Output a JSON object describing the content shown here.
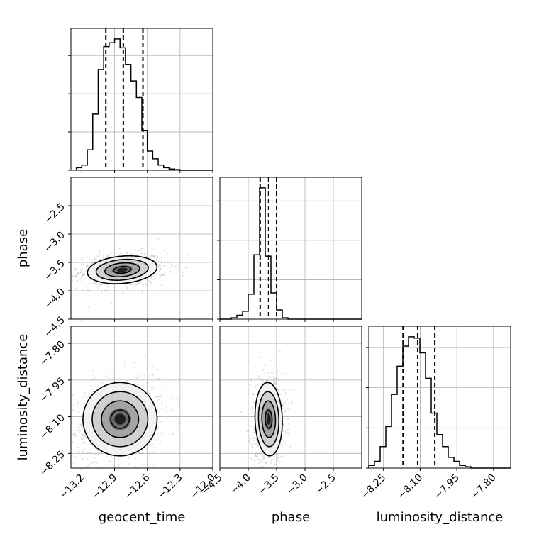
{
  "chart_data": {
    "type": "corner",
    "parameters": [
      {
        "name": "geocent_time",
        "xlabel": "geocent_time",
        "ylabel": "",
        "range": [
          -13.3,
          -12.0
        ],
        "ticks": [
          -13.2,
          -12.9,
          -12.6,
          -12.3,
          -12.0
        ],
        "tick_labels": [
          "−13.2",
          "−12.9",
          "−12.6",
          "−12.3",
          "−12.0"
        ],
        "histogram": {
          "bins": [
            -13.25,
            -13.2,
            -13.15,
            -13.1,
            -13.05,
            -13.0,
            -12.95,
            -12.9,
            -12.85,
            -12.8,
            -12.75,
            -12.7,
            -12.65,
            -12.6,
            -12.55,
            -12.5,
            -12.45,
            -12.4,
            -12.35,
            -12.3,
            -12.25,
            -12.2,
            -12.15,
            -12.1,
            -12.05,
            -12.0
          ],
          "counts": [
            0.02,
            0.04,
            0.16,
            0.44,
            0.79,
            0.97,
            1.0,
            1.03,
            0.96,
            0.83,
            0.7,
            0.57,
            0.31,
            0.15,
            0.09,
            0.04,
            0.02,
            0.01,
            0.005,
            0.0,
            0.0,
            0.0,
            0.0,
            0.0,
            0.0
          ]
        },
        "quantiles": [
          -12.98,
          -12.82,
          -12.64
        ],
        "yticks": [
          0.0,
          0.3,
          0.6,
          0.9
        ]
      },
      {
        "name": "phase",
        "xlabel": "phase",
        "ylabel": "phase",
        "range": [
          -4.5,
          -2.0
        ],
        "ticks": [
          -4.5,
          -4.0,
          -3.5,
          -3.0,
          -2.5
        ],
        "tick_labels": [
          "−4.5",
          "−4.0",
          "−3.5",
          "−3.0",
          "−2.5"
        ],
        "histogram": {
          "bins": [
            -4.5,
            -4.4,
            -4.3,
            -4.2,
            -4.1,
            -4.0,
            -3.9,
            -3.8,
            -3.7,
            -3.6,
            -3.5,
            -3.4,
            -3.3,
            -3.2,
            -3.1,
            -3.0,
            -2.9,
            -2.8,
            -2.7,
            -2.6,
            -2.5,
            -2.4,
            -2.3,
            -2.2,
            -2.1,
            -2.0
          ],
          "counts": [
            0.0,
            0.0,
            0.01,
            0.03,
            0.06,
            0.19,
            0.49,
            1.0,
            0.48,
            0.2,
            0.07,
            0.01,
            0.0,
            0.0,
            0.0,
            0.0,
            0.0,
            0.0,
            0.0,
            0.0,
            0.0,
            0.0,
            0.0,
            0.0,
            0.0
          ]
        },
        "quantiles": [
          -3.79,
          -3.64,
          -3.5
        ],
        "yticks": [
          0.0,
          0.3,
          0.6,
          0.9
        ]
      },
      {
        "name": "luminosity_distance",
        "xlabel": "luminosity_distance",
        "ylabel": "luminosity_distance",
        "range": [
          -8.31,
          -7.73
        ],
        "ticks": [
          -8.25,
          -8.1,
          -7.95,
          -7.8
        ],
        "tick_labels": [
          "−8.25",
          "−8.10",
          "−7.95",
          "−7.80"
        ],
        "histogram": {
          "bins": [
            -8.31,
            -8.2868,
            -8.2636,
            -8.2404,
            -8.2172,
            -8.194,
            -8.1708,
            -8.1476,
            -8.1244,
            -8.1012,
            -8.078,
            -8.0548,
            -8.0316,
            -8.0084,
            -7.9852,
            -7.962,
            -7.9388,
            -7.9156,
            -7.8924,
            -7.8692,
            -7.846,
            -7.8228,
            -7.7996,
            -7.7764,
            -7.7532,
            -7.73
          ],
          "counts": [
            0.02,
            0.05,
            0.16,
            0.31,
            0.55,
            0.76,
            0.91,
            0.98,
            0.97,
            0.86,
            0.67,
            0.41,
            0.25,
            0.16,
            0.08,
            0.05,
            0.02,
            0.01,
            0.0,
            0.0,
            0.0,
            0.0,
            0.0,
            0.0,
            0.0
          ]
        },
        "quantiles": [
          -8.17,
          -8.11,
          -8.04
        ],
        "yticks": [
          0.0,
          0.3,
          0.6,
          0.9
        ]
      }
    ],
    "pairs": [
      {
        "x_param": "geocent_time",
        "y_param": "phase",
        "center": [
          -12.83,
          -3.63
        ],
        "sigma": [
          0.16,
          0.12
        ],
        "correlation": 0.15
      },
      {
        "x_param": "geocent_time",
        "y_param": "luminosity_distance",
        "center": [
          -12.85,
          -8.11
        ],
        "sigma": [
          0.17,
          0.075
        ],
        "correlation": 0.25
      },
      {
        "x_param": "phase",
        "y_param": "luminosity_distance",
        "center": [
          -3.64,
          -8.11
        ],
        "sigma": [
          0.12,
          0.075
        ],
        "correlation": 0.05
      }
    ],
    "grid": true,
    "contour_levels": [
      0.5,
      1.0,
      1.5,
      2.0
    ]
  }
}
